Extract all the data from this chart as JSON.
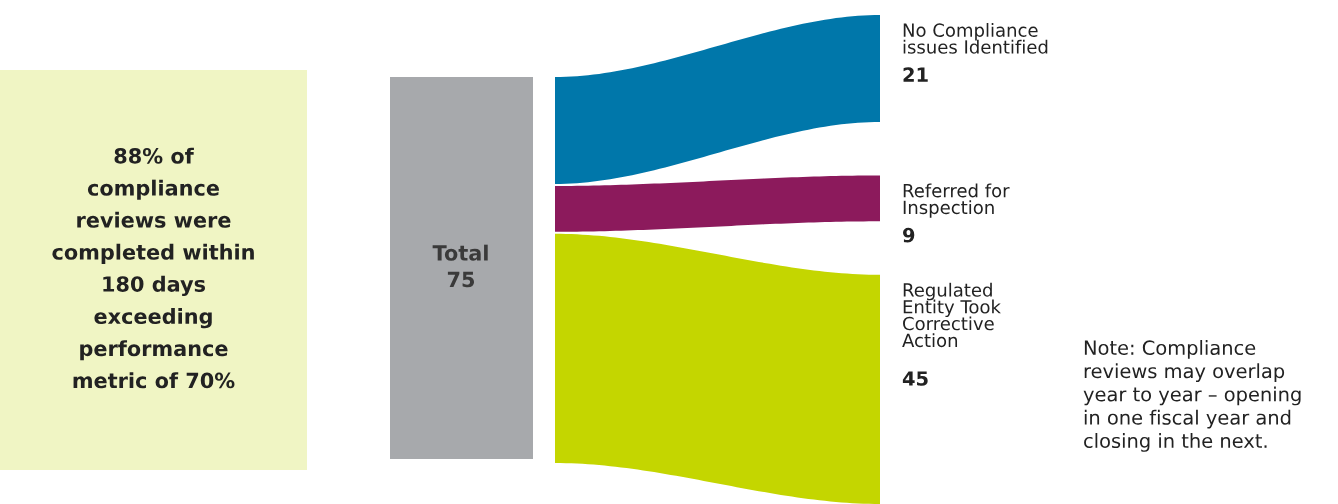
{
  "chart_data": [
    {
      "type": "other",
      "annotations": [
        "88% of\ncompliance\nreviews were\ncompleted within\n180 days\nexceeding\nperformance\nmetric of 70%"
      ]
    },
    {
      "type": "other",
      "categories": [
        "No Compliance\nissues Identified",
        "Referred for\nInspection",
        "Regulated\nEntity Took\nCorrective\nAction"
      ],
      "values": [
        21,
        9,
        45
      ],
      "colors": [
        "#0077aa",
        "#8c1a5c",
        "#c4d600"
      ],
      "data_labels": true,
      "annotations": [
        "Total\n75",
        "Note: Compliance\nreviews may overlap\nyear to year – opening\nin one fiscal year and\nclosing in the next."
      ]
    }
  ]
}
